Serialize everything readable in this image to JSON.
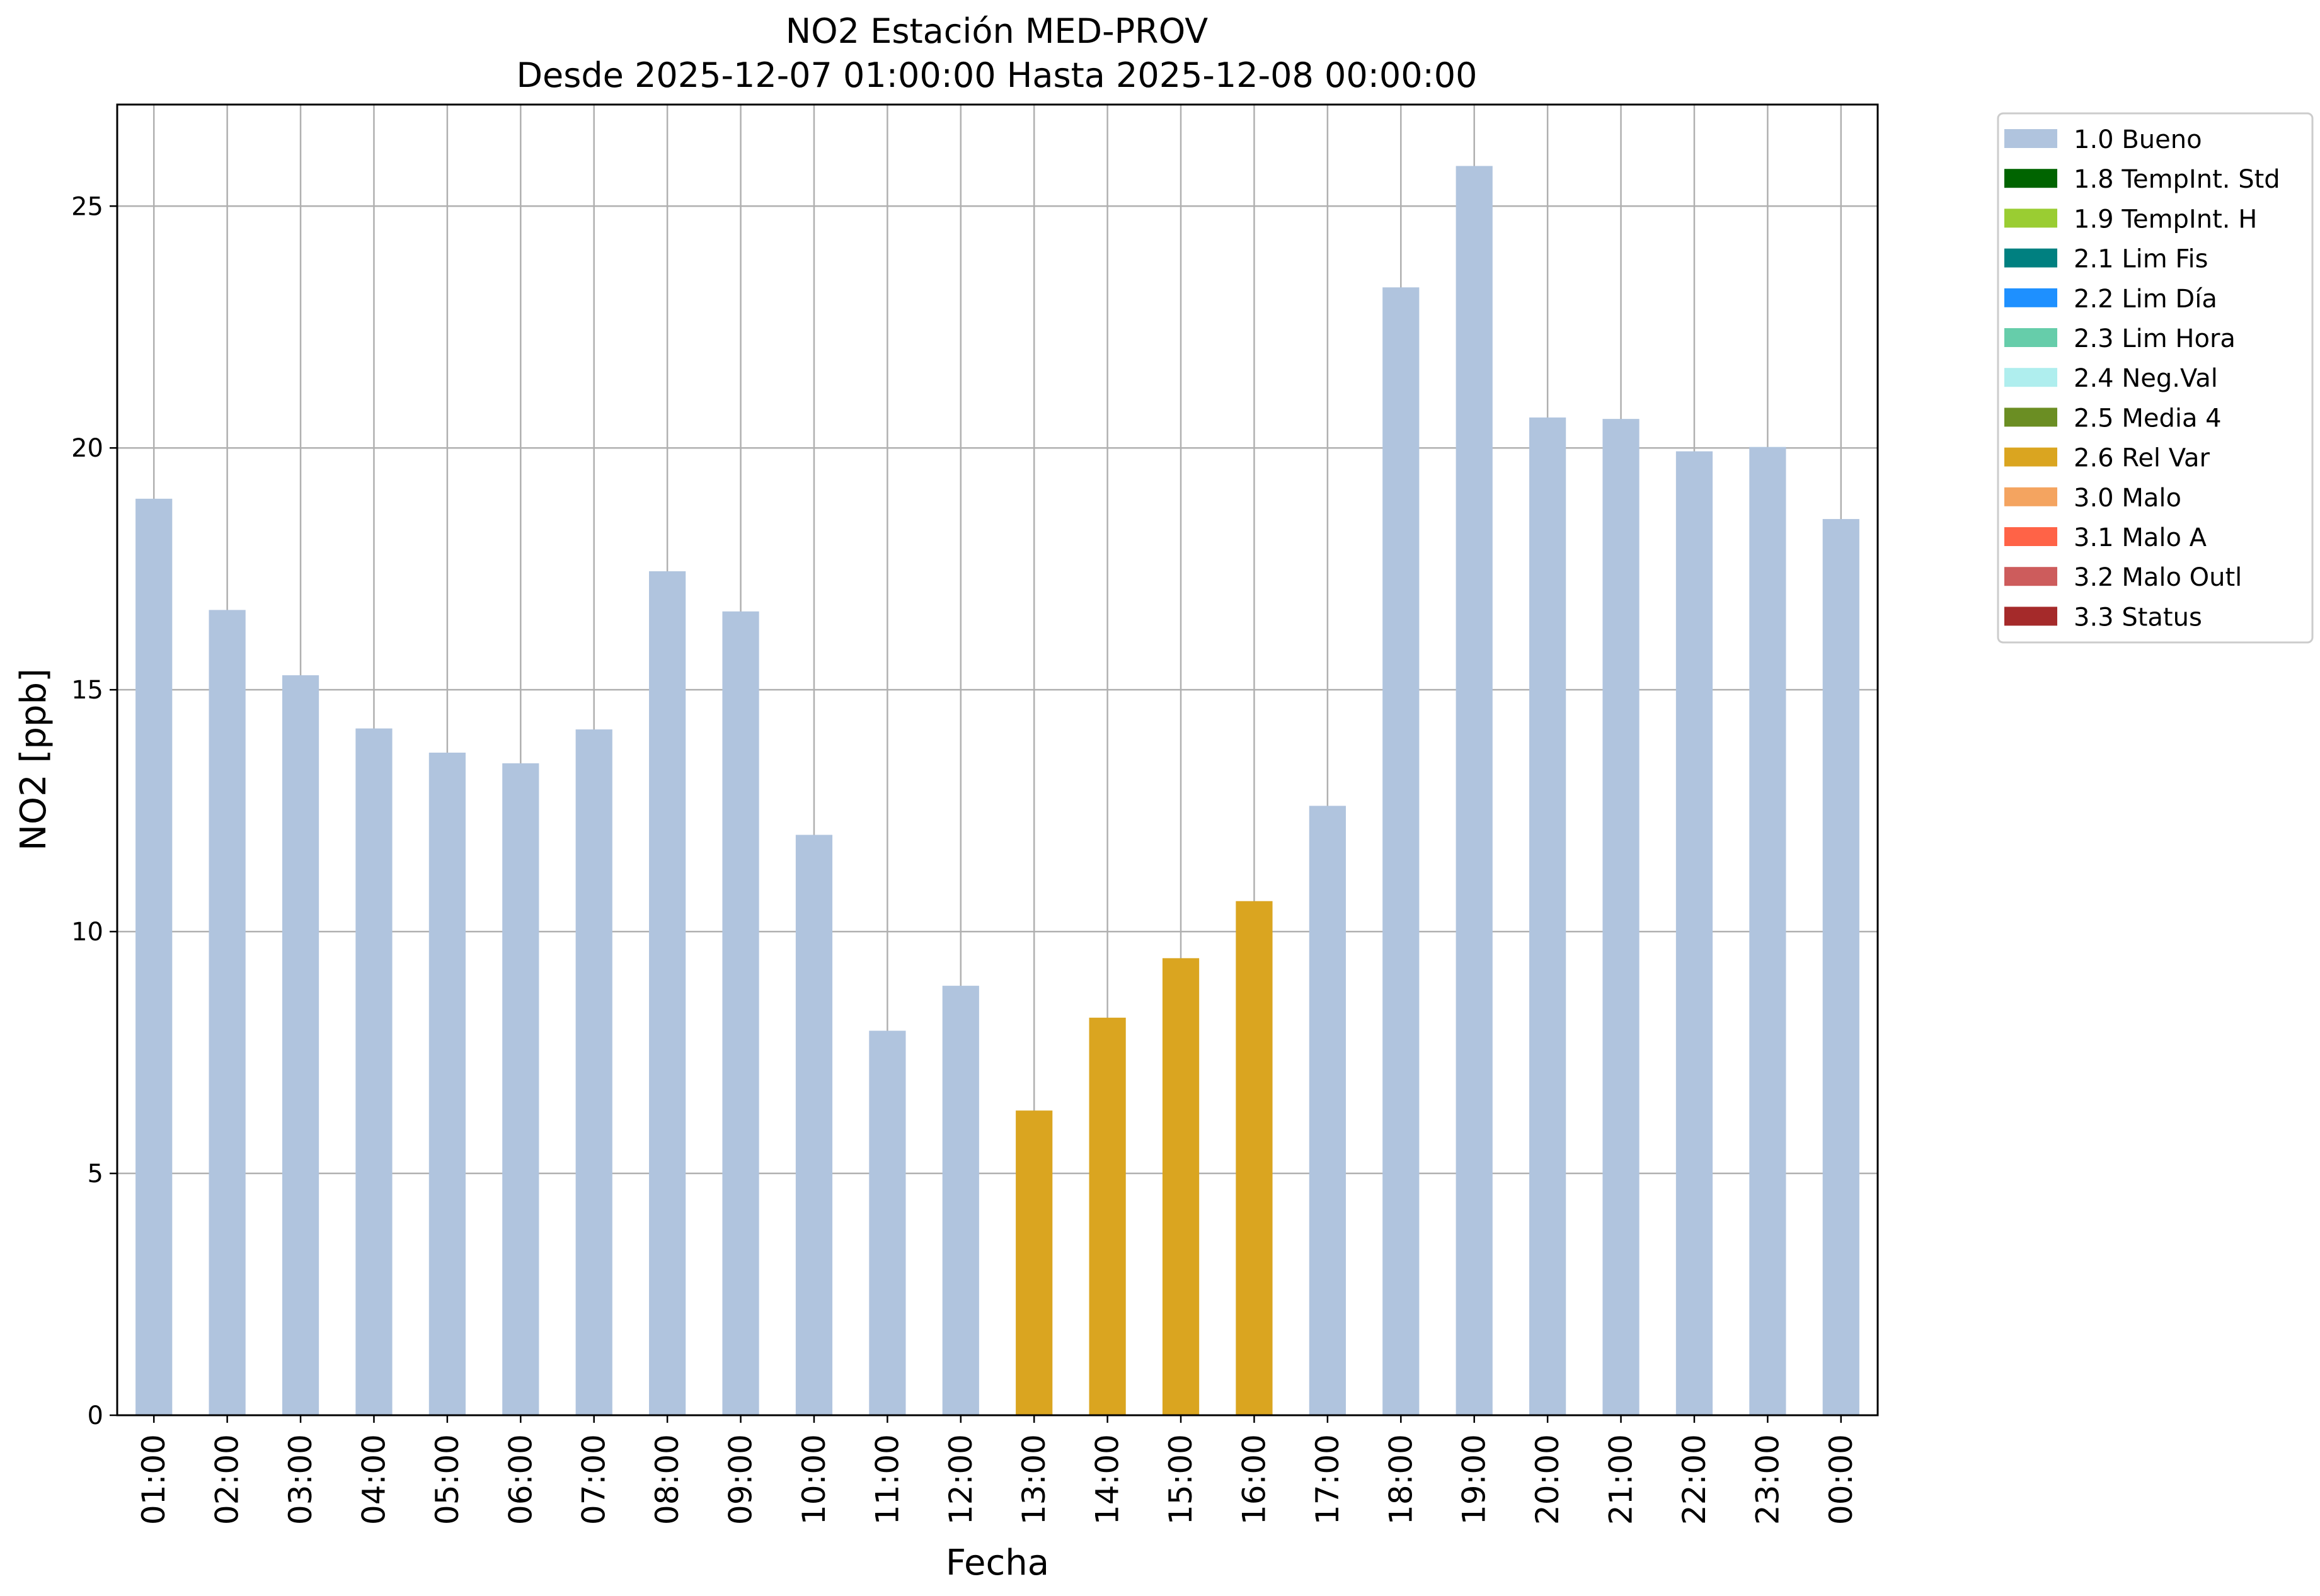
{
  "chart_data": {
    "type": "bar",
    "title": "NO2 Estación MED-PROV",
    "subtitle": "Desde 2025-12-07 01:00:00 Hasta 2025-12-08 00:00:00",
    "xlabel": "Fecha",
    "ylabel": "NO2 [ppb]",
    "ylim": [
      0,
      27.1
    ],
    "yticks": [
      0,
      5,
      10,
      15,
      20,
      25
    ],
    "grid": true,
    "legend_position": "outside-top-right",
    "categories": [
      "01:00",
      "02:00",
      "03:00",
      "04:00",
      "05:00",
      "06:00",
      "07:00",
      "08:00",
      "09:00",
      "10:00",
      "11:00",
      "12:00",
      "13:00",
      "14:00",
      "15:00",
      "16:00",
      "17:00",
      "18:00",
      "19:00",
      "20:00",
      "21:00",
      "22:00",
      "23:00",
      "00:00"
    ],
    "values": [
      18.95,
      16.65,
      15.3,
      14.2,
      13.7,
      13.48,
      14.18,
      17.45,
      16.62,
      12.0,
      7.95,
      8.88,
      6.3,
      8.22,
      9.45,
      10.63,
      12.6,
      23.32,
      25.83,
      20.63,
      20.6,
      19.93,
      20.02,
      18.53
    ],
    "bar_flags": [
      "1.0 Bueno",
      "1.0 Bueno",
      "1.0 Bueno",
      "1.0 Bueno",
      "1.0 Bueno",
      "1.0 Bueno",
      "1.0 Bueno",
      "1.0 Bueno",
      "1.0 Bueno",
      "1.0 Bueno",
      "1.0 Bueno",
      "1.0 Bueno",
      "2.6 Rel Var",
      "2.6 Rel Var",
      "2.6 Rel Var",
      "2.6 Rel Var",
      "1.0 Bueno",
      "1.0 Bueno",
      "1.0 Bueno",
      "1.0 Bueno",
      "1.0 Bueno",
      "1.0 Bueno",
      "1.0 Bueno",
      "1.0 Bueno"
    ],
    "legend": [
      {
        "label": "1.0 Bueno",
        "color": "#b0c4de"
      },
      {
        "label": "1.8 TempInt. Std",
        "color": "#006400"
      },
      {
        "label": "1.9 TempInt. H",
        "color": "#9acd32"
      },
      {
        "label": "2.1 Lim Fis",
        "color": "#008080"
      },
      {
        "label": "2.2 Lim Día",
        "color": "#1e90ff"
      },
      {
        "label": "2.3 Lim Hora",
        "color": "#66cdaa"
      },
      {
        "label": "2.4 Neg.Val",
        "color": "#afeeee"
      },
      {
        "label": "2.5 Media 4",
        "color": "#6b8e23"
      },
      {
        "label": "2.6 Rel Var",
        "color": "#daa520"
      },
      {
        "label": "3.0 Malo",
        "color": "#f4a460"
      },
      {
        "label": "3.1 Malo A",
        "color": "#ff6347"
      },
      {
        "label": "3.2 Malo Outl",
        "color": "#cd5c5c"
      },
      {
        "label": "3.3 Status",
        "color": "#a52a2a"
      }
    ]
  }
}
